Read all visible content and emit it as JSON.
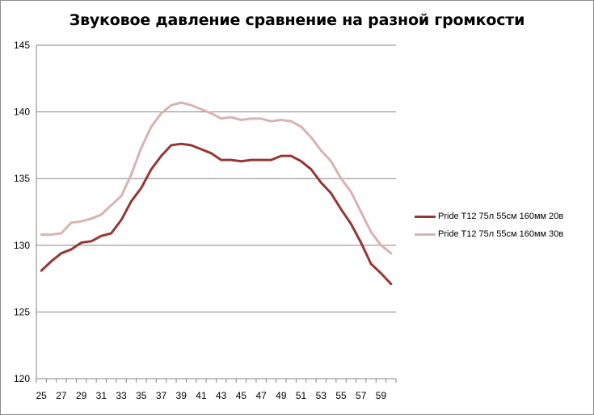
{
  "chart_data": {
    "type": "line",
    "title": "Звуковое давление сравнение на разной  громкости",
    "xlabel": "",
    "ylabel": "",
    "ylim": [
      120,
      145
    ],
    "yticks": [
      120,
      125,
      130,
      135,
      140,
      145
    ],
    "x": [
      25,
      26,
      27,
      28,
      29,
      30,
      31,
      32,
      33,
      34,
      35,
      36,
      37,
      38,
      39,
      40,
      41,
      42,
      43,
      44,
      45,
      46,
      47,
      48,
      49,
      50,
      51,
      52,
      53,
      54,
      55,
      56,
      57,
      58,
      59,
      60
    ],
    "x_tick_labels": [
      "25",
      "27",
      "29",
      "31",
      "33",
      "35",
      "37",
      "39",
      "41",
      "43",
      "45",
      "47",
      "49",
      "51",
      "53",
      "55",
      "57",
      "59"
    ],
    "grid": "horizontal",
    "legend_position": "right",
    "series": [
      {
        "name": "Pride T12 75л  55см  160мм  20в",
        "color": "#953735",
        "values": [
          128.1,
          128.8,
          129.4,
          129.7,
          130.2,
          130.3,
          130.7,
          130.9,
          131.9,
          133.3,
          134.3,
          135.7,
          136.7,
          137.5,
          137.6,
          137.5,
          137.2,
          136.9,
          136.4,
          136.4,
          136.3,
          136.4,
          136.4,
          136.4,
          136.7,
          136.7,
          136.3,
          135.7,
          134.7,
          133.9,
          132.7,
          131.6,
          130.2,
          128.6,
          127.9,
          127.1
        ]
      },
      {
        "name": "Pride T12 75л  55см  160мм 30в",
        "color": "#d9b3b1",
        "values": [
          130.8,
          130.8,
          130.9,
          131.7,
          131.8,
          132.0,
          132.3,
          133.0,
          133.7,
          135.3,
          137.3,
          138.9,
          139.9,
          140.5,
          140.7,
          140.5,
          140.2,
          139.9,
          139.5,
          139.6,
          139.4,
          139.5,
          139.5,
          139.3,
          139.4,
          139.3,
          138.9,
          138.1,
          137.1,
          136.3,
          135.0,
          134.0,
          132.5,
          131.0,
          130.0,
          129.4
        ]
      }
    ]
  }
}
